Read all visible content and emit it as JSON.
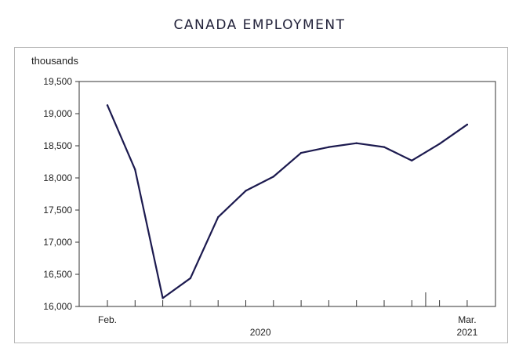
{
  "chart_data": {
    "type": "line",
    "title": "CANADA EMPLOYMENT",
    "ylabel": "thousands",
    "xlabel": "",
    "ylim": [
      16000,
      19500
    ],
    "yticks": [
      16000,
      16500,
      17000,
      17500,
      18000,
      18500,
      19000,
      19500
    ],
    "ytick_labels": [
      "16,000",
      "16,500",
      "17,000",
      "17,500",
      "18,000",
      "18,500",
      "19,000",
      "19,500"
    ],
    "x_tick_labels": [
      {
        "index": 0,
        "text": "Feb."
      },
      {
        "index": 13,
        "text": "Mar."
      }
    ],
    "year_labels": [
      {
        "text": "2020"
      },
      {
        "text": "2021"
      }
    ],
    "grid": false,
    "series": [
      {
        "color": "#1c1a4f",
        "values": [
          19130,
          18130,
          16130,
          16440,
          17390,
          17800,
          18020,
          18390,
          18480,
          18540,
          18480,
          18270,
          18530,
          18830
        ]
      }
    ]
  }
}
